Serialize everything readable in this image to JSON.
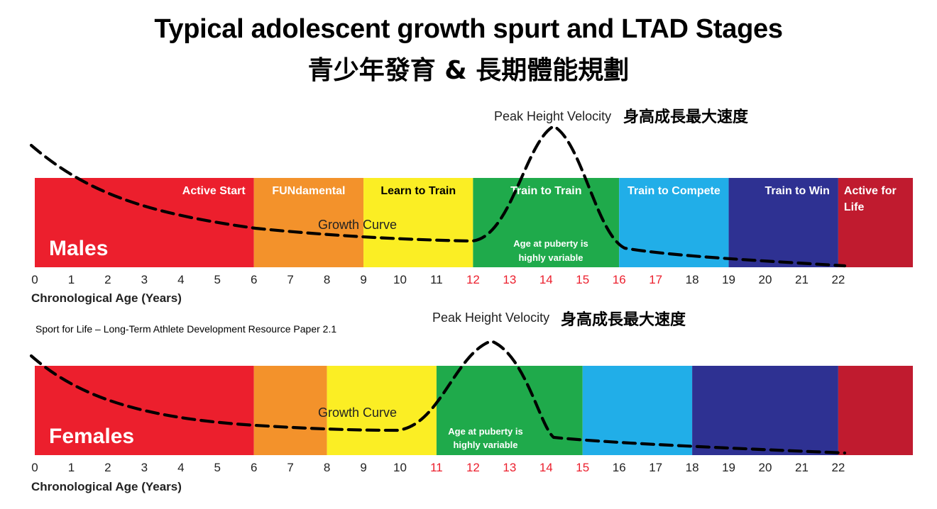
{
  "title_en": "Typical adolescent growth spurt and LTAD Stages",
  "title_zh": "青少年發育 & 長期體能規劃",
  "source": "Sport for Life – Long-Term Athlete Development Resource Paper 2.1",
  "colors": {
    "red": "#ec1f2d",
    "orange": "#f3922b",
    "yellow": "#fbee24",
    "green": "#1faa4b",
    "light_blue": "#21aee8",
    "dark_blue": "#2e3192",
    "dark_red": "#c01b2f",
    "highlight_tick": "#ec1f2d"
  },
  "panels": [
    {
      "id": "males",
      "sex_label": "Males",
      "axis_label": "Chronological Age (Years)",
      "tick_labels": [
        "0",
        "1",
        "2",
        "3",
        "4",
        "5",
        "6",
        "7",
        "8",
        "9",
        "10",
        "11",
        "12",
        "13",
        "14",
        "15",
        "16",
        "17",
        "18",
        "19",
        "20",
        "21",
        "22"
      ],
      "highlighted_ticks": [
        12,
        13,
        14,
        15,
        16,
        17
      ],
      "stages": [
        {
          "label": "Active Start",
          "from": 0,
          "to": 6,
          "color": "red",
          "label_color": "#ffffff",
          "align": "end"
        },
        {
          "label": "FUNdamental",
          "from": 6,
          "to": 9,
          "color": "orange",
          "label_color": "#ffffff",
          "align": "middle"
        },
        {
          "label": "Learn to Train",
          "from": 9,
          "to": 12,
          "color": "yellow",
          "label_color": "#000000",
          "align": "middle"
        },
        {
          "label": "Train to Train",
          "from": 12,
          "to": 16,
          "color": "green",
          "label_color": "#ffffff",
          "align": "middle"
        },
        {
          "label": "Train to Compete",
          "from": 16,
          "to": 19,
          "color": "light_blue",
          "label_color": "#ffffff",
          "align": "middle"
        },
        {
          "label": "Train to Win",
          "from": 19,
          "to": 22,
          "color": "dark_blue",
          "label_color": "#ffffff",
          "align": "end"
        },
        {
          "label": "Active for Life",
          "from": 22,
          "to": 24,
          "color": "dark_red",
          "label_color": "#ffffff",
          "align": "start",
          "lines": [
            "Active for",
            "Life"
          ]
        }
      ],
      "growth_curve_label": "Growth Curve",
      "puberty_note": [
        "Age at puberty is",
        "highly variable"
      ],
      "phv_label_en": "Peak Height Velocity",
      "phv_label_zh": "身高成長最大速度",
      "peak_age": 14
    },
    {
      "id": "females",
      "sex_label": "Females",
      "axis_label": "Chronological Age (Years)",
      "tick_labels": [
        "0",
        "1",
        "2",
        "3",
        "4",
        "5",
        "6",
        "7",
        "8",
        "9",
        "10",
        "11",
        "12",
        "13",
        "14",
        "15",
        "16",
        "17",
        "18",
        "19",
        "20",
        "21",
        "22"
      ],
      "highlighted_ticks": [
        11,
        12,
        13,
        14,
        15
      ],
      "stages": [
        {
          "label": "",
          "from": 0,
          "to": 6,
          "color": "red"
        },
        {
          "label": "",
          "from": 6,
          "to": 8,
          "color": "orange"
        },
        {
          "label": "",
          "from": 8,
          "to": 11,
          "color": "yellow"
        },
        {
          "label": "",
          "from": 11,
          "to": 15,
          "color": "green"
        },
        {
          "label": "",
          "from": 15,
          "to": 18,
          "color": "light_blue"
        },
        {
          "label": "",
          "from": 18,
          "to": 22,
          "color": "dark_blue"
        },
        {
          "label": "",
          "from": 22,
          "to": 24,
          "color": "dark_red"
        }
      ],
      "growth_curve_label": "Growth Curve",
      "puberty_note": [
        "Age at puberty is",
        "highly variable"
      ],
      "phv_label_en": "Peak Height Velocity",
      "phv_label_zh": "身高成長最大速度",
      "peak_age": 12.5
    }
  ]
}
